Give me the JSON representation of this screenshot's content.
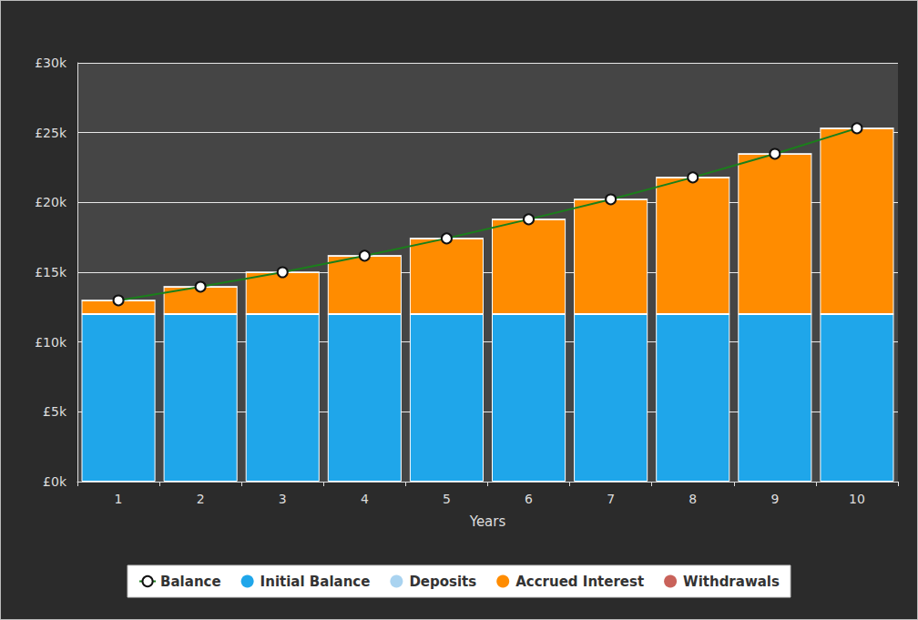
{
  "chart_data": {
    "type": "bar",
    "x_label": "Years",
    "categories": [
      "1",
      "2",
      "3",
      "4",
      "5",
      "6",
      "7",
      "8",
      "9",
      "10"
    ],
    "stacked": true,
    "grid": true,
    "legend": "bottom",
    "ylim": [
      0,
      30000
    ],
    "yticks": [
      {
        "value": 0,
        "label": "£0k"
      },
      {
        "value": 5000,
        "label": "£5k"
      },
      {
        "value": 10000,
        "label": "£10k"
      },
      {
        "value": 15000,
        "label": "£15k"
      },
      {
        "value": 20000,
        "label": "£20k"
      },
      {
        "value": 25000,
        "label": "£25k"
      },
      {
        "value": 30000,
        "label": "£30k"
      }
    ],
    "series": [
      {
        "name": "Balance",
        "type": "line",
        "color": "#1b7f1b",
        "marker": "circle",
        "line_style": "solid",
        "values": [
          12980,
          13960,
          15000,
          16180,
          17420,
          18790,
          20220,
          21790,
          23480,
          25310
        ]
      },
      {
        "name": "Initial Balance",
        "type": "bar",
        "color": "#1fa6ea",
        "values": [
          12000,
          12000,
          12000,
          12000,
          12000,
          12000,
          12000,
          12000,
          12000,
          12000
        ]
      },
      {
        "name": "Deposits",
        "type": "bar",
        "color": "#a9d3f0",
        "values": [
          0,
          0,
          0,
          0,
          0,
          0,
          0,
          0,
          0,
          0
        ]
      },
      {
        "name": "Accrued Interest",
        "type": "bar",
        "color": "#ff8c00",
        "values": [
          980,
          1960,
          3000,
          4180,
          5420,
          6790,
          8220,
          9790,
          11480,
          13310
        ]
      },
      {
        "name": "Withdrawals",
        "type": "bar",
        "color": "#c9625a",
        "values": [
          0,
          0,
          0,
          0,
          0,
          0,
          0,
          0,
          0,
          0
        ]
      }
    ]
  }
}
